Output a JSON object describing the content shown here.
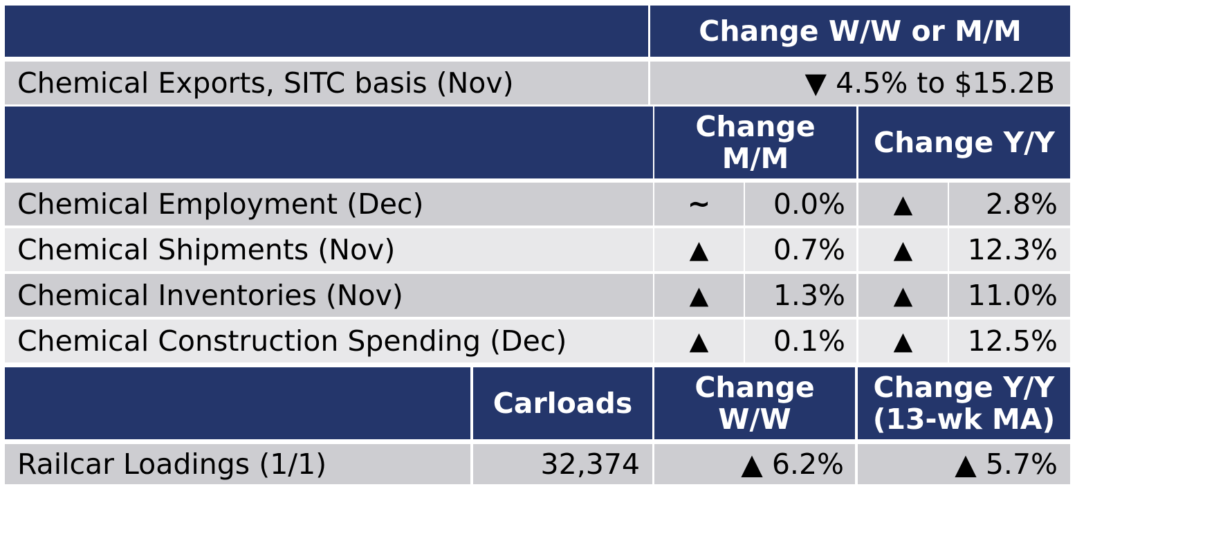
{
  "exports_section": {
    "header_change": "Change W/W or M/M",
    "row": {
      "label": "Chemical Exports, SITC basis (Nov)",
      "value": "▼ 4.5% to $15.2B"
    }
  },
  "monthly_section": {
    "header_mm": "Change M/M",
    "header_yy": "Change Y/Y",
    "rows": [
      {
        "label": "Chemical Employment (Dec)",
        "mm_dir": "~",
        "mm_val": "0.0%",
        "yy_dir": "▲",
        "yy_val": "2.8%"
      },
      {
        "label": "Chemical Shipments (Nov)",
        "mm_dir": "▲",
        "mm_val": "0.7%",
        "yy_dir": "▲",
        "yy_val": "12.3%"
      },
      {
        "label": "Chemical Inventories (Nov)",
        "mm_dir": "▲",
        "mm_val": "1.3%",
        "yy_dir": "▲",
        "yy_val": "11.0%"
      },
      {
        "label": "Chemical Construction Spending (Dec)",
        "mm_dir": "▲",
        "mm_val": "0.1%",
        "yy_dir": "▲",
        "yy_val": "12.5%"
      }
    ]
  },
  "railcar_section": {
    "header_carloads": "Carloads",
    "header_ww": "Change W/W",
    "header_yy": "Change Y/Y (13-wk MA)",
    "row": {
      "label": "Railcar Loadings (1/1)",
      "carloads": "32,374",
      "ww": "▲ 6.2%",
      "yy": "▲ 5.7%"
    }
  },
  "colors": {
    "header_bg": "#24366b",
    "row_dark": "#cdcdd1",
    "row_light": "#e8e8ea"
  }
}
